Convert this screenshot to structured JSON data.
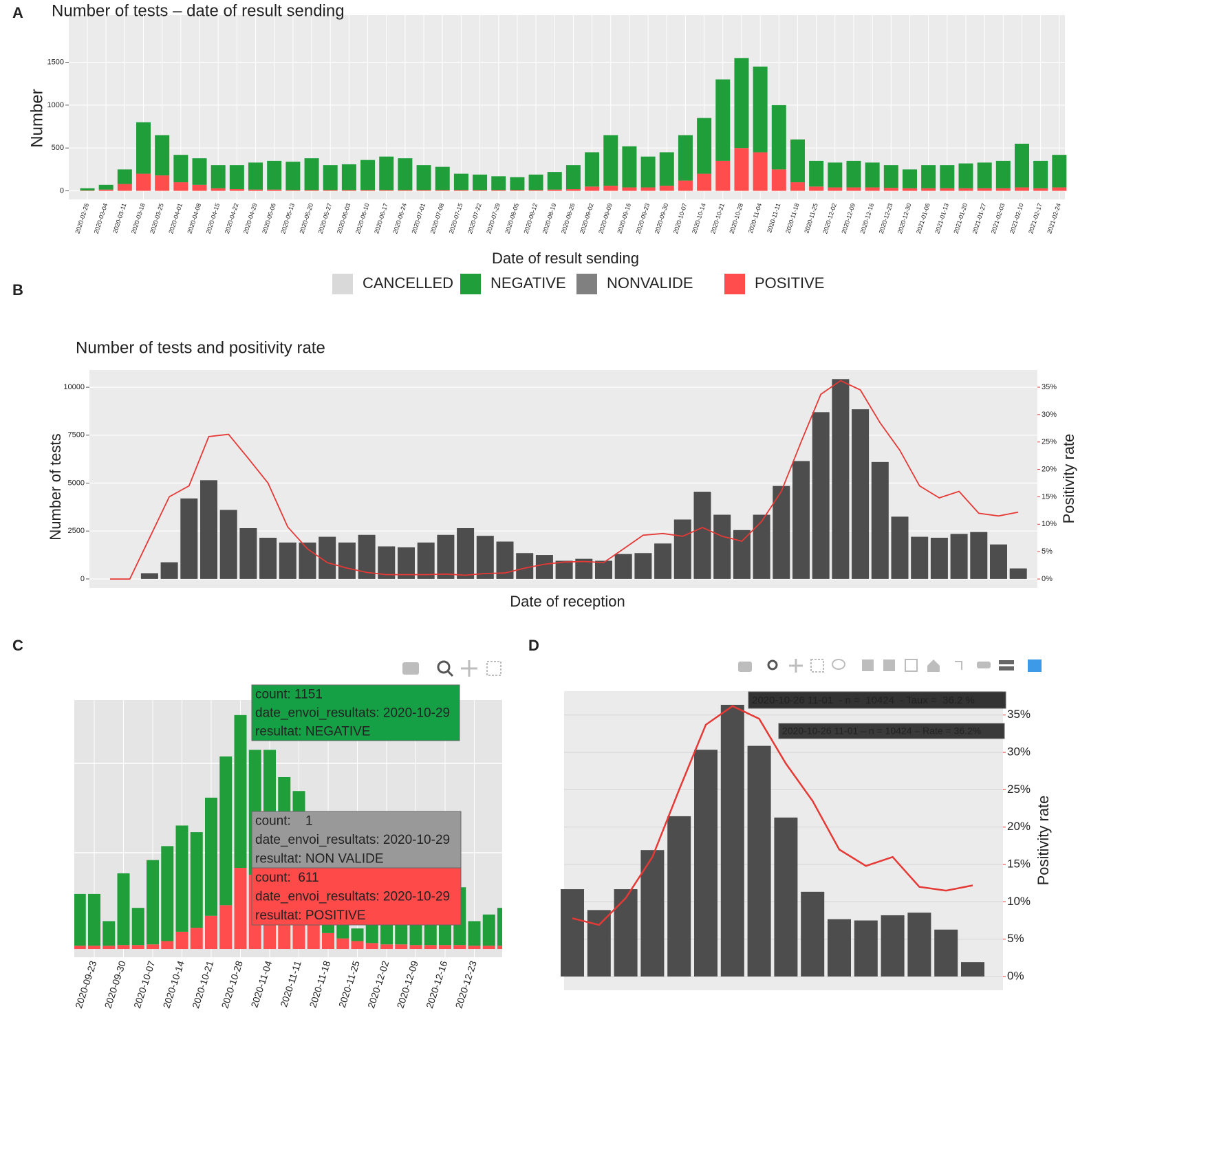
{
  "chart_data": [
    {
      "panel": "A",
      "type": "stacked_bar",
      "title": "Number of tests – date of result sending",
      "x_label": "Date of result sending",
      "y_label": "Number",
      "categories": [
        "2020-02-26",
        "2020-03-04",
        "2020-03-11",
        "2020-03-18",
        "2020-03-25",
        "2020-04-01",
        "2020-04-08",
        "2020-04-15",
        "2020-04-22",
        "2020-04-29",
        "2020-05-06",
        "2020-05-13",
        "2020-05-20",
        "2020-05-27",
        "2020-06-03",
        "2020-06-10",
        "2020-06-17",
        "2020-06-24",
        "2020-07-01",
        "2020-07-08",
        "2020-07-15",
        "2020-07-22",
        "2020-07-29",
        "2020-08-05",
        "2020-08-12",
        "2020-08-19",
        "2020-08-26",
        "2020-09-02",
        "2020-09-09",
        "2020-09-16",
        "2020-09-23",
        "2020-09-30",
        "2020-10-07",
        "2020-10-14",
        "2020-10-21",
        "2020-10-28",
        "2020-11-04",
        "2020-11-11",
        "2020-11-18",
        "2020-11-25",
        "2020-12-02",
        "2020-12-09",
        "2020-12-16",
        "2020-12-23",
        "2020-12-30",
        "2021-01-06",
        "2021-01-13",
        "2021-01-20",
        "2021-01-27",
        "2021-02-03",
        "2021-02-10",
        "2021-02-17",
        "2021-02-24"
      ],
      "series": [
        {
          "name": "CANCELLED",
          "color": "#d9d9d9",
          "values": [
            0,
            0,
            0,
            0,
            0,
            0,
            0,
            0,
            0,
            0,
            0,
            0,
            0,
            0,
            0,
            0,
            0,
            0,
            0,
            0,
            0,
            0,
            0,
            0,
            0,
            0,
            0,
            0,
            0,
            0,
            0,
            0,
            0,
            0,
            0,
            0,
            0,
            0,
            0,
            0,
            0,
            0,
            0,
            0,
            0,
            0,
            0,
            0,
            0,
            0,
            0,
            0,
            0
          ]
        },
        {
          "name": "NEGATIVE",
          "color": "#1f9e3a",
          "values": [
            25,
            55,
            170,
            600,
            470,
            320,
            310,
            270,
            280,
            315,
            335,
            330,
            370,
            290,
            300,
            350,
            390,
            370,
            290,
            270,
            190,
            180,
            160,
            150,
            180,
            205,
            280,
            400,
            590,
            480,
            360,
            390,
            530,
            650,
            950,
            1050,
            1000,
            750,
            500,
            300,
            290,
            310,
            290,
            265,
            220,
            270,
            270,
            290,
            300,
            320,
            510,
            320,
            380
          ]
        },
        {
          "name": "NONVALIDE",
          "color": "#808080",
          "values": [
            0,
            0,
            0,
            0,
            0,
            0,
            0,
            0,
            0,
            0,
            0,
            0,
            0,
            0,
            0,
            0,
            0,
            0,
            0,
            0,
            0,
            0,
            0,
            0,
            0,
            0,
            0,
            0,
            0,
            0,
            0,
            0,
            0,
            0,
            0,
            0,
            0,
            0,
            0,
            0,
            0,
            0,
            0,
            0,
            0,
            0,
            0,
            0,
            0,
            0,
            0,
            0,
            0
          ]
        },
        {
          "name": "POSITIVE",
          "color": "#ff4d4d",
          "values": [
            5,
            15,
            80,
            200,
            180,
            100,
            70,
            30,
            20,
            15,
            15,
            10,
            10,
            10,
            10,
            10,
            10,
            10,
            10,
            10,
            10,
            10,
            10,
            10,
            10,
            15,
            20,
            50,
            60,
            40,
            40,
            60,
            120,
            200,
            350,
            500,
            450,
            250,
            100,
            50,
            40,
            40,
            40,
            35,
            30,
            30,
            30,
            30,
            30,
            30,
            40,
            30,
            40
          ]
        }
      ],
      "ylim": [
        -100,
        2050
      ],
      "yticks": [
        0,
        500,
        1000,
        1500
      ],
      "grid": true
    },
    {
      "panel": "B",
      "type": "bar_line",
      "title": "Number of tests and positivity rate",
      "x_label": "Date of reception",
      "y_label": "Number of tests",
      "y2_label": "Positivity rate",
      "series": [
        {
          "color": "#4d4d4d",
          "axis": "y",
          "values": [
            null,
            null,
            300,
            870,
            4200,
            5150,
            3600,
            2650,
            2150,
            1900,
            1900,
            2200,
            1900,
            2300,
            1700,
            1650,
            1900,
            2300,
            2650,
            2250,
            1950,
            1350,
            1250,
            950,
            1050,
            950,
            1300,
            1350,
            1850,
            3100,
            4550,
            3350,
            2550,
            3350,
            4850,
            6150,
            8700,
            10424,
            8850,
            6100,
            3250,
            2200,
            2150,
            2350,
            2450,
            1800,
            550
          ]
        },
        {
          "color": "#e53935",
          "axis": "y2",
          "values": [
            0,
            0,
            7.5,
            15,
            17,
            26,
            26.4,
            22,
            17.5,
            9.5,
            5.5,
            3,
            2,
            1.2,
            0.8,
            0.8,
            0.8,
            0.9,
            0.7,
            1,
            1.1,
            2,
            2.7,
            3.1,
            3.2,
            3,
            5.5,
            8,
            8.3,
            7.8,
            9.4,
            7.8,
            6.9,
            10.5,
            16,
            25,
            33.7,
            36.2,
            34.5,
            28.5,
            23.5,
            17,
            14.8,
            16,
            12,
            11.5,
            12.2
          ]
        }
      ],
      "ylim": [
        -470,
        10900
      ],
      "yticks": [
        0,
        2500,
        5000,
        7500,
        10000
      ],
      "y2lim": [
        -1.63,
        38.14
      ],
      "y2ticks": [
        {
          "value": 0,
          "label": "0%"
        },
        {
          "value": 5,
          "label": "5%"
        },
        {
          "value": 10,
          "label": "10%"
        },
        {
          "value": 15,
          "label": "15%"
        },
        {
          "value": 20,
          "label": "20%"
        },
        {
          "value": 25,
          "label": "25%"
        },
        {
          "value": 30,
          "label": "30%"
        },
        {
          "value": 35,
          "label": "35%"
        }
      ],
      "grid": true
    },
    {
      "panel": "C",
      "type": "stacked_bar",
      "categories": [
        null,
        "2020-09-23",
        null,
        "2020-09-30",
        null,
        "2020-10-07",
        null,
        "2020-10-14",
        null,
        "2020-10-21",
        null,
        "2020-10-28",
        null,
        "2020-11-04",
        null,
        "2020-11-11",
        null,
        "2020-11-18",
        null,
        "2020-11-25",
        null,
        "2020-12-02",
        null,
        "2020-12-09",
        null,
        "2020-12-16",
        null,
        "2020-12-23",
        null,
        null
      ],
      "series": [
        {
          "color": "#1f9e3a",
          "values": [
            390,
            390,
            185,
            540,
            280,
            635,
            715,
            800,
            720,
            890,
            1120,
            1151,
            940,
            1000,
            895,
            870,
            450,
            295,
            180,
            95,
            165,
            225,
            225,
            230,
            230,
            280,
            435,
            185,
            235,
            285
          ]
        },
        {
          "color": "#ff4d4d",
          "values": [
            25,
            25,
            25,
            30,
            30,
            35,
            60,
            130,
            160,
            250,
            330,
            611,
            560,
            500,
            400,
            320,
            220,
            120,
            80,
            60,
            45,
            35,
            35,
            30,
            30,
            30,
            30,
            25,
            25,
            25
          ]
        }
      ],
      "ylim": [
        -62,
        1875
      ],
      "grid": true,
      "tooltips": [
        {
          "color": "#16a046",
          "text_color": "#ffffff",
          "lines": [
            "count: 1151",
            "date_envoi_resultats: 2020-10-29",
            "resultat: NEGATIVE"
          ]
        },
        {
          "color": "#999999",
          "text_color": "#3a3a3a",
          "lines": [
            "count:    1",
            "date_envoi_resultats: 2020-10-29",
            "resultat: NON VALIDE"
          ]
        },
        {
          "color": "#ff4a4a",
          "text_color": "#ffffff",
          "lines": [
            "count:  611",
            "date_envoi_resultats: 2020-10-29",
            "resultat: POSITIVE"
          ]
        }
      ]
    },
    {
      "panel": "D",
      "type": "bar_line",
      "y2_label": "Positivity rate",
      "series": [
        {
          "color": "#4d4d4d",
          "axis": "y",
          "values": [
            3350,
            2550,
            3350,
            4850,
            6150,
            8700,
            10424,
            8850,
            6100,
            3250,
            2200,
            2150,
            2350,
            2450,
            1800,
            550
          ]
        },
        {
          "color": "#e53935",
          "axis": "y2",
          "values": [
            7.8,
            6.9,
            10.5,
            16,
            25,
            33.7,
            36.2,
            34.5,
            28.5,
            23.5,
            17,
            14.8,
            16,
            12,
            11.5,
            12.2
          ]
        }
      ],
      "ylim": [
        -528,
        10950
      ],
      "y2lim": [
        -1.84,
        38.2
      ],
      "y2ticks": [
        {
          "value": 0,
          "label": "0%"
        },
        {
          "value": 5,
          "label": "5%"
        },
        {
          "value": 10,
          "label": "10%"
        },
        {
          "value": 15,
          "label": "15%"
        },
        {
          "value": 20,
          "label": "20%"
        },
        {
          "value": 25,
          "label": "25%"
        },
        {
          "value": 30,
          "label": "30%"
        },
        {
          "value": 35,
          "label": "35%"
        }
      ],
      "grid": true,
      "tooltips": [
        {
          "color": "#333333",
          "text_color": "#ffffff",
          "lines": [
            "2020-10-26 11-01  - n =  10424  - Taux =  36.2 %"
          ]
        },
        {
          "color": "#3a3a3a",
          "text_color": "#ffffff",
          "lines": [
            "2020-10-26 11-01 – n = 10424 – Rate = 36.2%"
          ]
        }
      ]
    }
  ]
}
